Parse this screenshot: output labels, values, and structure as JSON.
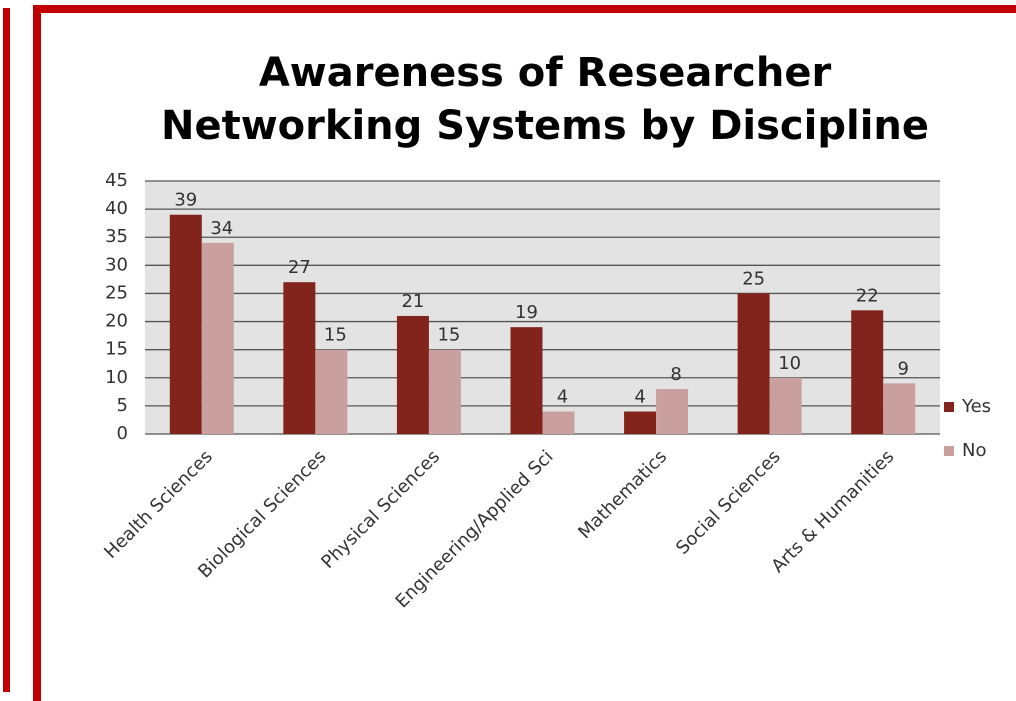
{
  "chart_data": {
    "type": "bar",
    "title": [
      "Awareness of Researcher",
      "Networking Systems by Discipline"
    ],
    "categories": [
      "Health Sciences",
      "Biological Sciences",
      "Physical Sciences",
      "Engineering/Applied Sci",
      "Mathematics",
      "Social Sciences",
      "Arts & Humanities"
    ],
    "series": [
      {
        "name": "Yes",
        "color": "#82231c",
        "values": [
          39,
          27,
          21,
          19,
          4,
          25,
          22
        ]
      },
      {
        "name": "No",
        "color": "#c9a09e",
        "values": [
          34,
          15,
          15,
          4,
          8,
          10,
          9
        ]
      }
    ],
    "ylim": [
      0,
      45
    ],
    "yticks": [
      0,
      5,
      10,
      15,
      20,
      25,
      30,
      35,
      40,
      45
    ],
    "grid": true,
    "legend": "right"
  }
}
